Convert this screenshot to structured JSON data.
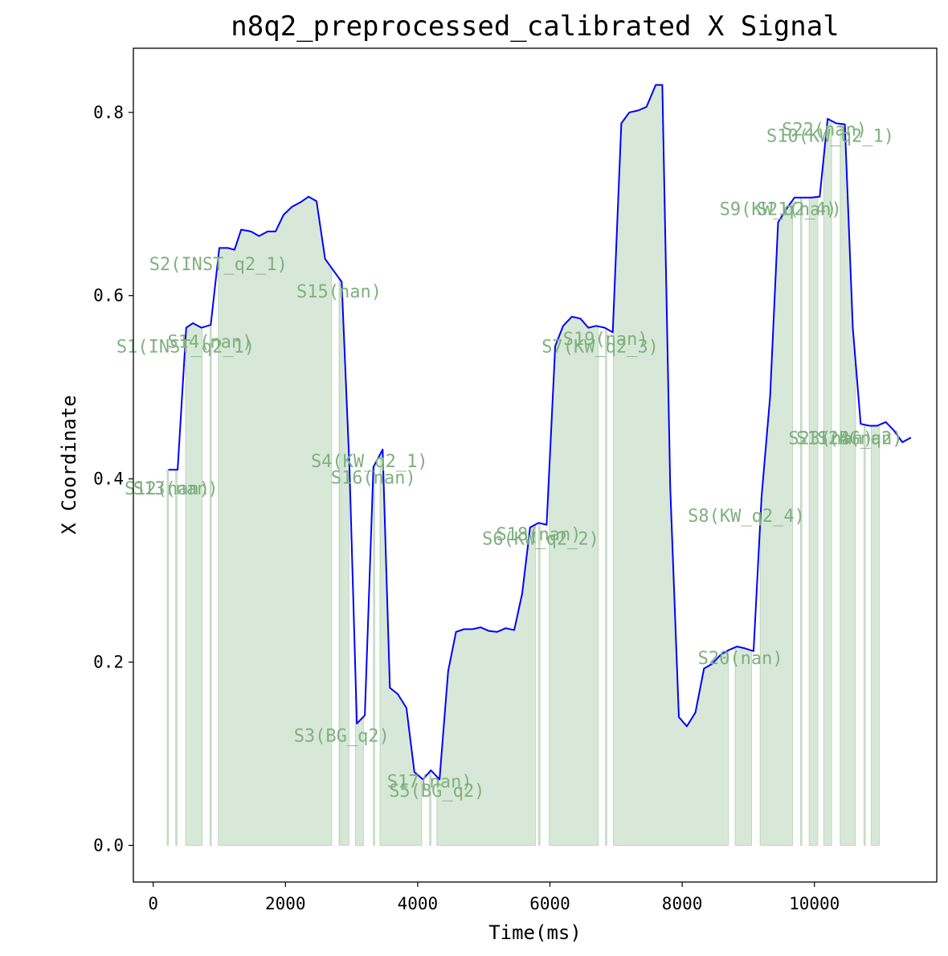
{
  "chart_data": {
    "type": "line",
    "title": "n8q2_preprocessed_calibrated X Signal",
    "xlabel": "Time(ms)",
    "ylabel": "X Coordinate",
    "xlim": [
      -300,
      11850
    ],
    "ylim": [
      -0.04,
      0.87
    ],
    "xticks": [
      0,
      2000,
      4000,
      6000,
      8000,
      10000
    ],
    "yticks": [
      0.0,
      0.2,
      0.4,
      0.6,
      0.8
    ],
    "ytick_labels": [
      "0.0",
      "0.2",
      "0.4",
      "0.6",
      "0.8"
    ],
    "grid": false,
    "line_color": "#0000ff",
    "fill_color": "#8fbc8f",
    "label_color": "#7fb07f",
    "series": [
      {
        "x": [
          230,
          370,
          500,
          600,
          730,
          870,
          1000,
          1130,
          1230,
          1330,
          1480,
          1600,
          1730,
          1850,
          1970,
          2100,
          2230,
          2350,
          2470,
          2600,
          2730,
          2850,
          2970,
          3080,
          3200,
          3330,
          3470,
          3580,
          3700,
          3830,
          3950,
          4080,
          4200,
          4330,
          4460,
          4580,
          4700,
          4830,
          4950,
          5080,
          5200,
          5330,
          5460,
          5580,
          5700,
          5830,
          5950,
          6080,
          6200,
          6330,
          6460,
          6580,
          6700,
          6830,
          6950,
          7080,
          7200,
          7330,
          7460,
          7600,
          7700,
          7820,
          7950,
          8070,
          8200,
          8330,
          8450,
          8580,
          8700,
          8830,
          8950,
          9080,
          9200,
          9330,
          9450,
          9580,
          9700,
          9830,
          9950,
          10080,
          10200,
          10330,
          10460,
          10580,
          10700,
          10830,
          10950,
          11080,
          11200,
          11330,
          11460
        ],
        "y": [
          0.41,
          0.41,
          0.565,
          0.57,
          0.565,
          0.568,
          0.652,
          0.652,
          0.65,
          0.672,
          0.67,
          0.665,
          0.67,
          0.67,
          0.688,
          0.697,
          0.702,
          0.708,
          0.703,
          0.64,
          0.627,
          0.615,
          0.41,
          0.133,
          0.142,
          0.413,
          0.432,
          0.172,
          0.165,
          0.15,
          0.08,
          0.072,
          0.082,
          0.072,
          0.19,
          0.233,
          0.236,
          0.236,
          0.238,
          0.234,
          0.233,
          0.237,
          0.235,
          0.275,
          0.347,
          0.352,
          0.35,
          0.545,
          0.567,
          0.577,
          0.575,
          0.565,
          0.567,
          0.565,
          0.56,
          0.788,
          0.8,
          0.802,
          0.806,
          0.83,
          0.83,
          0.39,
          0.14,
          0.13,
          0.145,
          0.193,
          0.198,
          0.208,
          0.213,
          0.217,
          0.215,
          0.212,
          0.38,
          0.49,
          0.68,
          0.695,
          0.707,
          0.707,
          0.707,
          0.708,
          0.793,
          0.788,
          0.787,
          0.565,
          0.46,
          0.458,
          0.458,
          0.462,
          0.453,
          0.44,
          0.445
        ]
      }
    ],
    "segments": [
      {
        "label": "S1(INST_q2_1)",
        "x0": 490,
        "x1": 740
      },
      {
        "label": "S2(INST_q2_1)",
        "x0": 985,
        "x1": 2700
      },
      {
        "label": "S3(BG_q2)",
        "x0": 2850,
        "x1": 2960
      },
      {
        "label": "S4(KW_q2_1)",
        "x0": 3060,
        "x1": 3180
      },
      {
        "label": "S5(BG_q2)",
        "x0": 3430,
        "x1": 4060
      },
      {
        "label": "S6(KW_q2_2)",
        "x0": 4290,
        "x1": 5780
      },
      {
        "label": "S7(KW_q2_3)",
        "x0": 5990,
        "x1": 6730
      },
      {
        "label": "S8(KW_q2_4)",
        "x0": 6960,
        "x1": 8700
      },
      {
        "label": "S9(KW_q2_4)",
        "x0": 8800,
        "x1": 9050
      },
      {
        "label": "S10(KW_q2_1)",
        "x0": 9180,
        "x1": 9670
      },
      {
        "label": "S11(BG_q2)",
        "x0": 9920,
        "x1": 10050
      },
      {
        "label": "S12(nan)",
        "x0": 210,
        "x1": 230
      },
      {
        "label": "S13(nan)",
        "x0": 340,
        "x1": 360
      },
      {
        "label": "S14(nan)",
        "x0": 860,
        "x1": 880
      },
      {
        "label": "S15(nan)",
        "x0": 2810,
        "x1": 2830
      },
      {
        "label": "S16(nan)",
        "x0": 3330,
        "x1": 3350
      },
      {
        "label": "S17(nan)",
        "x0": 4180,
        "x1": 4200
      },
      {
        "label": "S18(nan)",
        "x0": 5830,
        "x1": 5850
      },
      {
        "label": "S19(nan)",
        "x0": 6840,
        "x1": 6860
      },
      {
        "label": "S20(nan)",
        "x0": 9790,
        "x1": 9810
      },
      {
        "label": "S21(nan)",
        "x0": 10140,
        "x1": 10260
      },
      {
        "label": "S22(nan)",
        "x0": 10390,
        "x1": 10620
      },
      {
        "label": "S23(nan)",
        "x0": 10750,
        "x1": 10770
      },
      {
        "label": "S24(nan)",
        "x0": 10860,
        "x1": 10980
      }
    ],
    "annotations": [
      {
        "text": "S1(INST_q2_1)",
        "x": 490,
        "y": 0.545
      },
      {
        "text": "S2(INST_q2_1)",
        "x": 985,
        "y": 0.635
      },
      {
        "text": "S3(BG_q2)",
        "x": 2850,
        "y": 0.12
      },
      {
        "text": "S4(KW_q2_1)",
        "x": 3270,
        "y": 0.42
      },
      {
        "text": "S5(BG_q2)",
        "x": 4290,
        "y": 0.06
      },
      {
        "text": "S6(KW_q2_2)",
        "x": 5860,
        "y": 0.335
      },
      {
        "text": "S7(KW_q2_3)",
        "x": 6760,
        "y": 0.545
      },
      {
        "text": "S8(KW_q2_4)",
        "x": 8970,
        "y": 0.36
      },
      {
        "text": "S9(KW_q2_4)",
        "x": 9450,
        "y": 0.695
      },
      {
        "text": "S10(KW_q2_1)",
        "x": 10240,
        "y": 0.775
      },
      {
        "text": "S11(BG_q2)",
        "x": 10530,
        "y": 0.445
      },
      {
        "text": "S12(nan)",
        "x": 210,
        "y": 0.39
      },
      {
        "text": "S13(nan)",
        "x": 340,
        "y": 0.39
      },
      {
        "text": "S14(nan)",
        "x": 860,
        "y": 0.55
      },
      {
        "text": "S15(nan)",
        "x": 2810,
        "y": 0.605
      },
      {
        "text": "S16(nan)",
        "x": 3330,
        "y": 0.402
      },
      {
        "text": "S17(nan)",
        "x": 4180,
        "y": 0.07
      },
      {
        "text": "S18(nan)",
        "x": 5830,
        "y": 0.34
      },
      {
        "text": "S19(nan)",
        "x": 6840,
        "y": 0.553
      },
      {
        "text": "S20(nan)",
        "x": 8880,
        "y": 0.205
      },
      {
        "text": "S21(nan)",
        "x": 9770,
        "y": 0.695
      },
      {
        "text": "S22(nan)",
        "x": 10150,
        "y": 0.782
      },
      {
        "text": "S23(nan)",
        "x": 10250,
        "y": 0.445
      },
      {
        "text": "S24(nan)",
        "x": 10690,
        "y": 0.445
      }
    ]
  }
}
